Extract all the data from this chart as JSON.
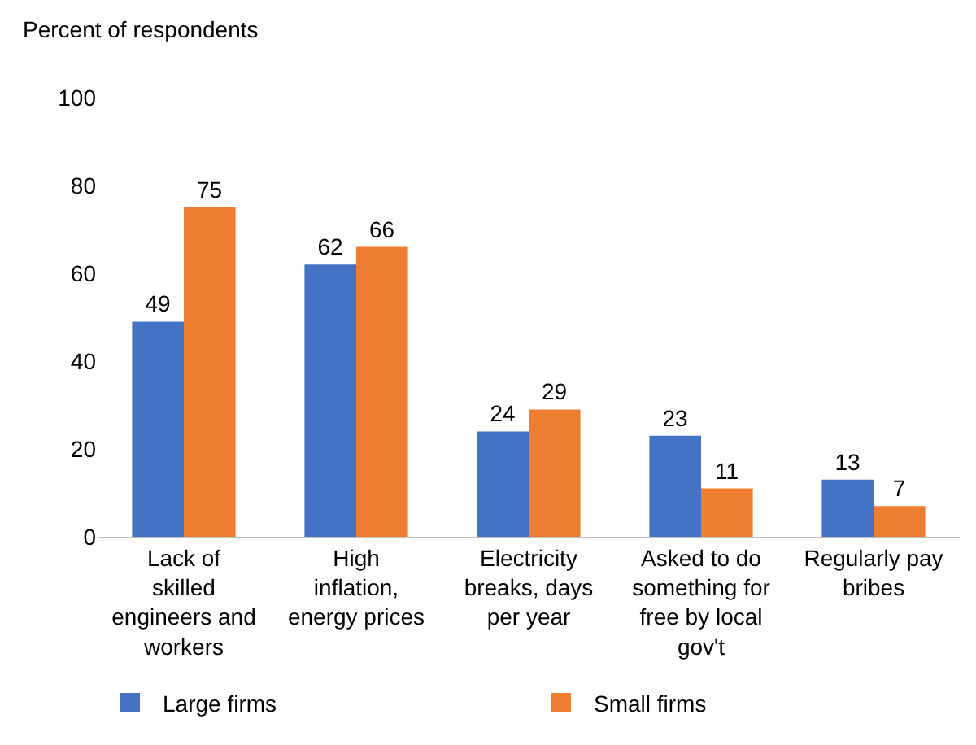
{
  "chart_data": {
    "type": "bar",
    "ylabel": "Percent of respondents",
    "categories": [
      "Lack of skilled engineers and workers",
      "High inflation, energy prices",
      "Electricity breaks, days per year",
      "Asked to do something for free by local gov't",
      "Regularly pay bribes"
    ],
    "series": [
      {
        "name": "Large firms",
        "color": "#4472c4",
        "values": [
          49,
          62,
          24,
          23,
          13
        ]
      },
      {
        "name": "Small firms",
        "color": "#ed7d31",
        "values": [
          75,
          66,
          29,
          11,
          7
        ]
      }
    ],
    "ylim": [
      0,
      100
    ],
    "yticks": [
      0,
      20,
      40,
      60,
      80,
      100
    ],
    "grid": false,
    "legend": "bottom",
    "data_labels": true
  }
}
